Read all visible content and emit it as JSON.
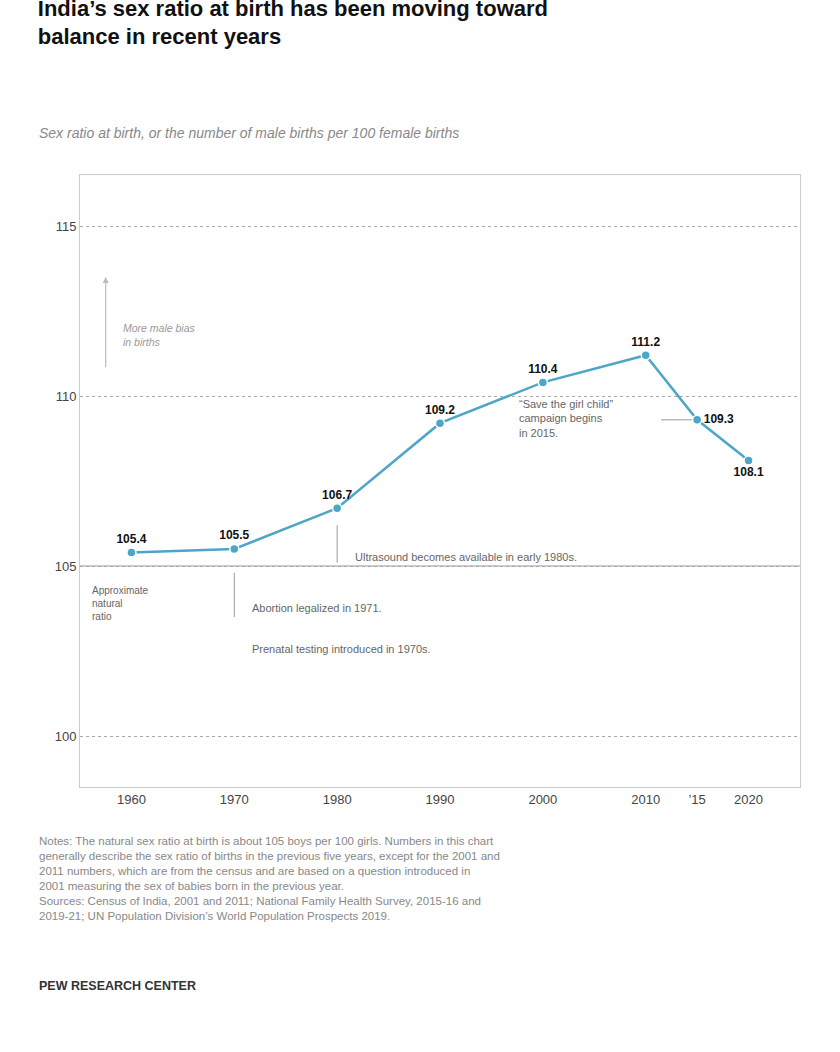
{
  "chart_data": {
    "type": "line",
    "title": "India’s sex ratio at birth has been moving toward\nbalance in recent years",
    "subtitle": "Sex ratio at birth, or the number of male births per 100 female births",
    "x": [
      1960,
      1970,
      1980,
      1990,
      2000,
      2010,
      2015,
      2020
    ],
    "values": [
      105.4,
      105.5,
      106.7,
      109.2,
      110.4,
      111.2,
      109.3,
      108.1
    ],
    "color": "#4da6c8",
    "marker": "circle",
    "xlim": [
      1955,
      2025
    ],
    "xticks": [
      1960,
      1970,
      1980,
      1990,
      2000,
      2010,
      {
        "value": 2015,
        "label": "’15"
      },
      2020
    ],
    "ylim": [
      98.5,
      116.5
    ],
    "yticks": [
      100,
      105,
      110,
      115
    ],
    "grid": true,
    "data_labels": true,
    "reference_line": 105,
    "annotations": [
      "Approximate\nnatural\nratio",
      "Abortion legalized in 1971.",
      "Prenatal testing introduced in 1970s.",
      "Ultrasound becomes available in early 1980s.",
      "“Save the girl child”\ncampaign begins\nin 2015.",
      "More male bias\nin births"
    ],
    "notes": "Notes: The natural sex ratio at birth is about 105 boys per 100 girls. Numbers in this chart\ngenerally describe the sex ratio of births in the previous five years, except for the 2001 and\n2011 numbers, which are from the census and are based on a question introduced in\n2001 measuring the sex of babies born in the previous year.\nSources: Census of India, 2001 and 2011; National Family Health Survey, 2015-16 and\n2019-21; UN Population Division’s World Population Prospects 2019.",
    "source": "PEW RESEARCH CENTER"
  }
}
